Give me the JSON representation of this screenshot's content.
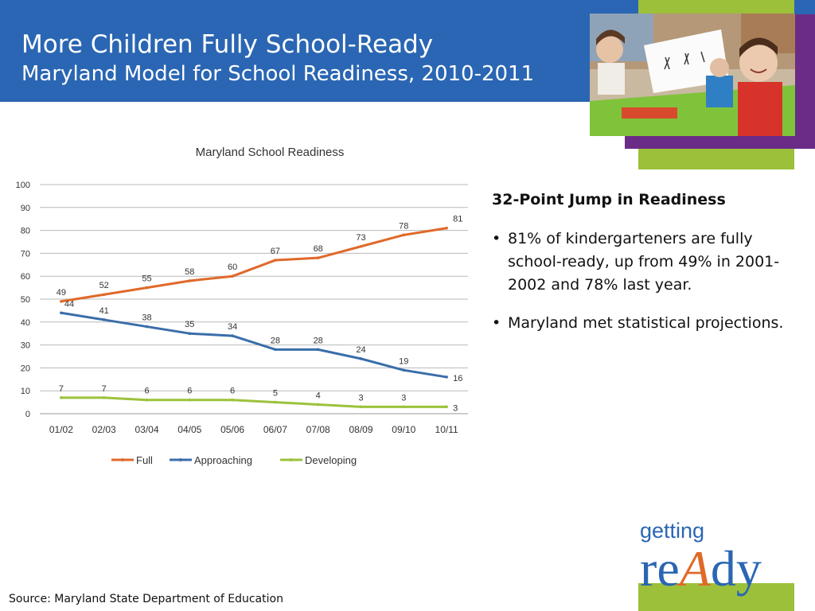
{
  "header": {
    "title": "More Children Fully School-Ready",
    "subtitle": "Maryland Model for School Readiness, 2010-2011"
  },
  "side_text": {
    "heading": "32-Point Jump in Readiness",
    "bullets": [
      "81% of kindergarteners are fully school-ready, up from 49% in 2001-2002 and 78% last year.",
      "Maryland met statistical projections."
    ],
    "bullet_glyph": "•"
  },
  "source": "Source: Maryland State Department of Education",
  "logo": {
    "top_word": "getting",
    "bottom_word": "reAdy"
  },
  "colors": {
    "header_blue": "#2a66b3",
    "accent_green": "#9cc03a",
    "accent_purple": "#6a2c87",
    "full": "#e0692a",
    "approaching": "#3a6eaa",
    "developing": "#9cc23c"
  },
  "chart_data": {
    "type": "line",
    "title": "Maryland School Readiness",
    "categories": [
      "01/02",
      "02/03",
      "03/04",
      "04/05",
      "05/06",
      "06/07",
      "07/08",
      "08/09",
      "09/10",
      "10/11"
    ],
    "series": [
      {
        "name": "Full",
        "values": [
          49,
          52,
          55,
          58,
          60,
          67,
          68,
          73,
          78,
          81
        ],
        "color": "#e0692a"
      },
      {
        "name": "Approaching",
        "values": [
          44,
          41,
          38,
          35,
          34,
          28,
          28,
          24,
          19,
          16
        ],
        "color": "#3a6eaa"
      },
      {
        "name": "Developing",
        "values": [
          7,
          7,
          6,
          6,
          6,
          5,
          4,
          3,
          3,
          3
        ],
        "color": "#9cc23c"
      }
    ],
    "ylim": [
      0,
      100
    ],
    "yticks": [
      0,
      10,
      20,
      30,
      40,
      50,
      60,
      70,
      80,
      90,
      100
    ],
    "grid": true,
    "legend": "bottom"
  }
}
